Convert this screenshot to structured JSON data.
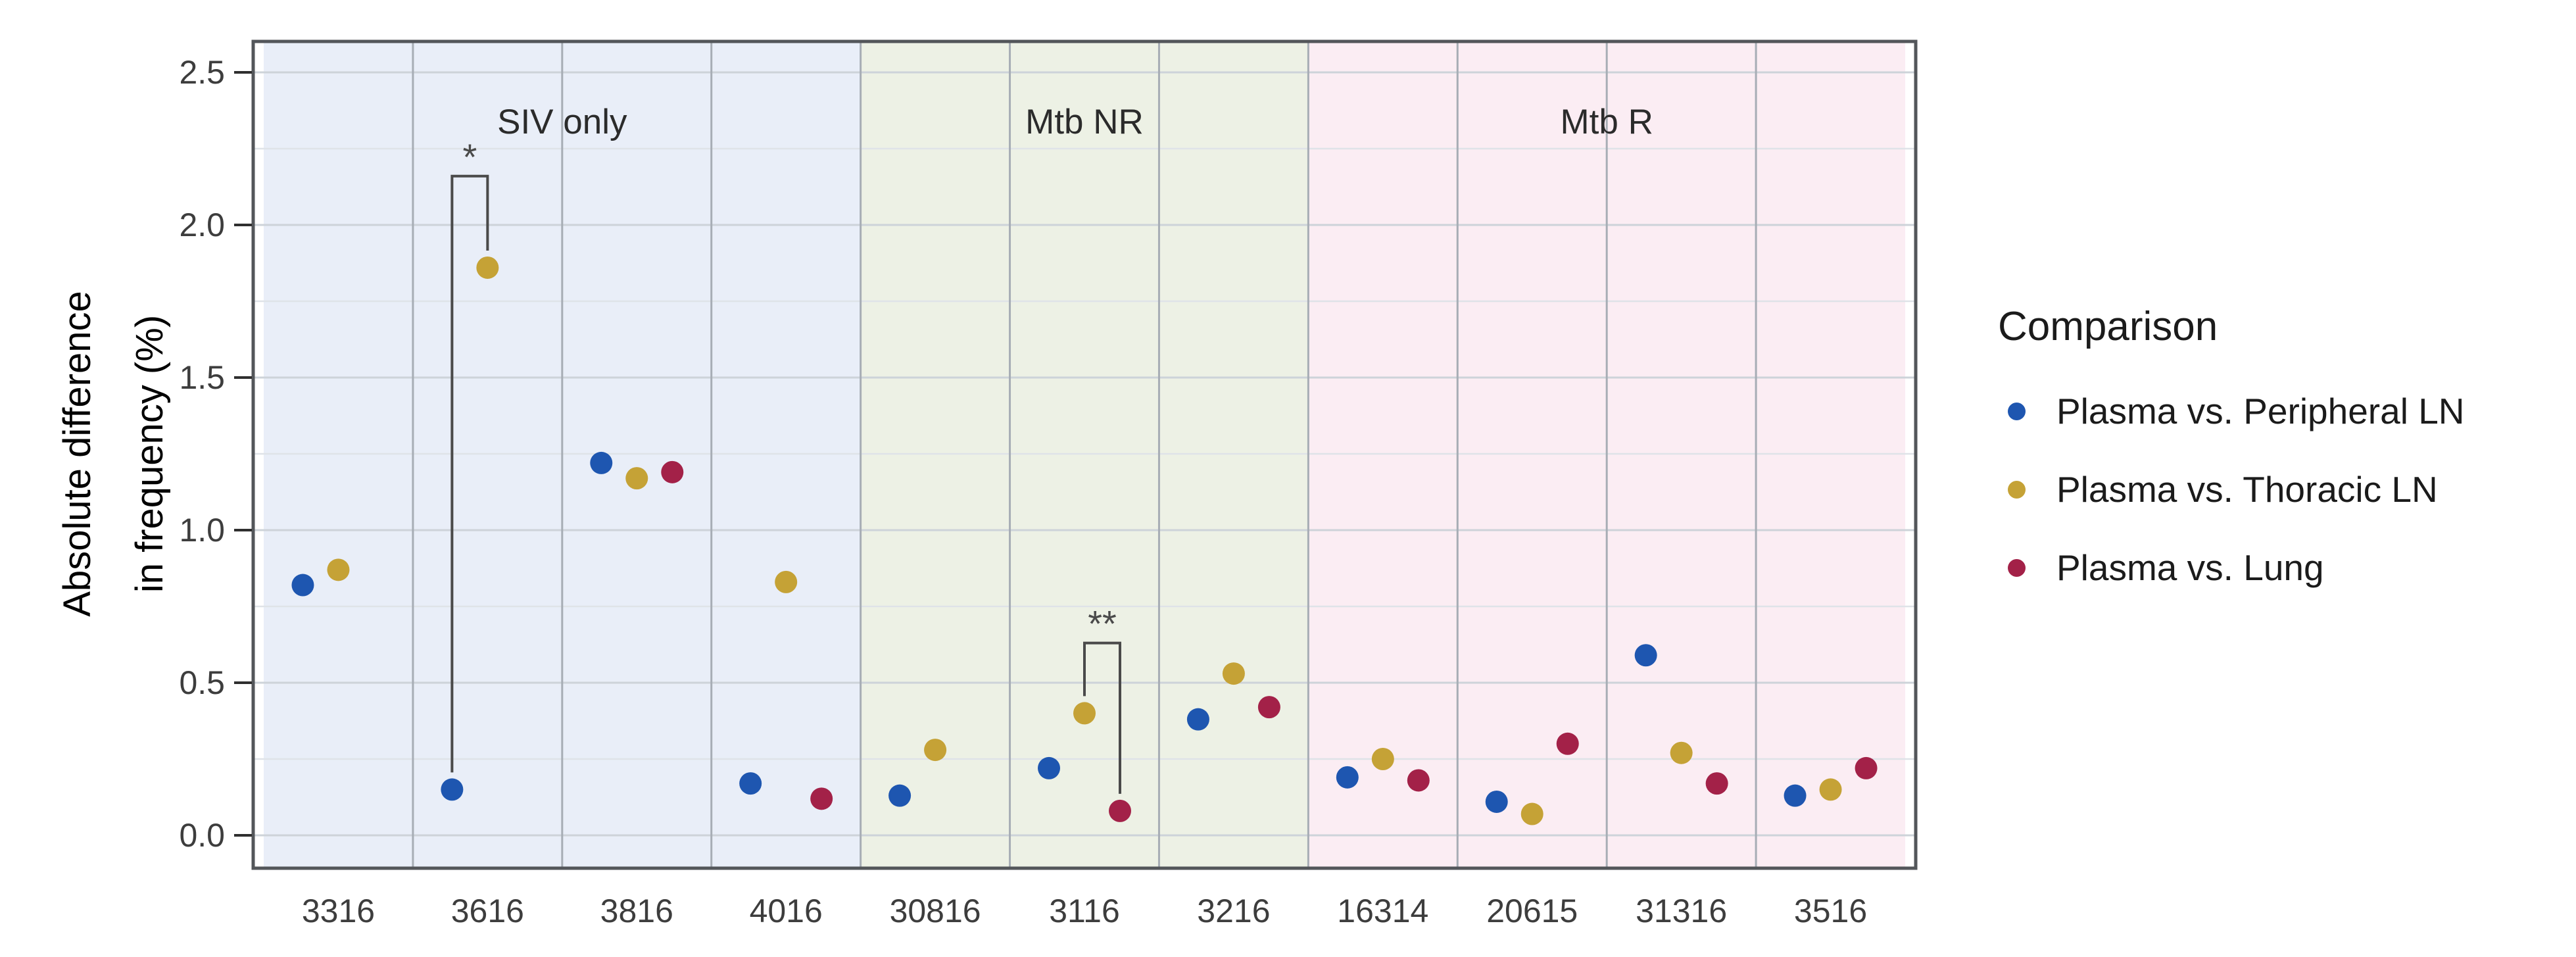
{
  "y_axis": {
    "title_line1": "Absolute difference",
    "title_line2": "in frequency (%)",
    "tick_labels": [
      "0.0",
      "0.5",
      "1.0",
      "1.5",
      "2.0",
      "2.5"
    ]
  },
  "legend": {
    "title": "Comparison"
  },
  "chart_data": {
    "type": "scatter",
    "title": "",
    "xlabel": "",
    "ylabel": "Absolute difference in frequency (%)",
    "ylim": [
      0,
      2.6
    ],
    "y_major_ticks": [
      0,
      0.5,
      1,
      1.5,
      2,
      2.5
    ],
    "y_minor_ticks": [
      0.25,
      0.75,
      1.25,
      1.75,
      2.25
    ],
    "grid": "major+minor",
    "legend_position": "right",
    "legend_title": "Comparison",
    "series": [
      {
        "name": "Plasma vs. Peripheral LN",
        "color": "#1e56b0"
      },
      {
        "name": "Plasma vs. Thoracic LN",
        "color": "#c5a236"
      },
      {
        "name": "Plasma vs. Lung",
        "color": "#a32148"
      }
    ],
    "groups": [
      {
        "label": "SIV only",
        "background": "#e9eef8",
        "animals": [
          "3316",
          "3616",
          "3816",
          "4016"
        ]
      },
      {
        "label": "Mtb NR",
        "background": "#edf1e5",
        "animals": [
          "30816",
          "3116",
          "3216"
        ]
      },
      {
        "label": "Mtb R",
        "background": "#fbedf3",
        "animals": [
          "16314",
          "20615",
          "31316",
          "3516"
        ]
      }
    ],
    "x_categories": [
      "3316",
      "3616",
      "3816",
      "4016",
      "30816",
      "3116",
      "3216",
      "16314",
      "20615",
      "31316",
      "3516"
    ],
    "values": {
      "3316": {
        "Plasma vs. Peripheral LN": 0.82,
        "Plasma vs. Thoracic LN": 0.87,
        "Plasma vs. Lung": null
      },
      "3616": {
        "Plasma vs. Peripheral LN": 0.15,
        "Plasma vs. Thoracic LN": 1.86,
        "Plasma vs. Lung": null
      },
      "3816": {
        "Plasma vs. Peripheral LN": 1.22,
        "Plasma vs. Thoracic LN": 1.17,
        "Plasma vs. Lung": 1.19
      },
      "4016": {
        "Plasma vs. Peripheral LN": 0.17,
        "Plasma vs. Thoracic LN": 0.83,
        "Plasma vs. Lung": 0.12
      },
      "30816": {
        "Plasma vs. Peripheral LN": 0.13,
        "Plasma vs. Thoracic LN": 0.28,
        "Plasma vs. Lung": null
      },
      "3116": {
        "Plasma vs. Peripheral LN": 0.22,
        "Plasma vs. Thoracic LN": 0.4,
        "Plasma vs. Lung": 0.08
      },
      "3216": {
        "Plasma vs. Peripheral LN": 0.38,
        "Plasma vs. Thoracic LN": 0.53,
        "Plasma vs. Lung": 0.42
      },
      "16314": {
        "Plasma vs. Peripheral LN": 0.19,
        "Plasma vs. Thoracic LN": 0.25,
        "Plasma vs. Lung": 0.18
      },
      "20615": {
        "Plasma vs. Peripheral LN": 0.11,
        "Plasma vs. Thoracic LN": 0.07,
        "Plasma vs. Lung": 0.3
      },
      "31316": {
        "Plasma vs. Peripheral LN": 0.59,
        "Plasma vs. Thoracic LN": 0.27,
        "Plasma vs. Lung": 0.17
      },
      "3516": {
        "Plasma vs. Peripheral LN": 0.13,
        "Plasma vs. Thoracic LN": 0.15,
        "Plasma vs. Lung": 0.22
      }
    },
    "significance": [
      {
        "animal": "3616",
        "between": [
          "Plasma vs. Peripheral LN",
          "Plasma vs. Thoracic LN"
        ],
        "label": "*",
        "bar_top": 2.16
      },
      {
        "animal": "3116",
        "between": [
          "Plasma vs. Thoracic LN",
          "Plasma vs. Lung"
        ],
        "label": "**",
        "bar_top": 0.63
      }
    ]
  }
}
